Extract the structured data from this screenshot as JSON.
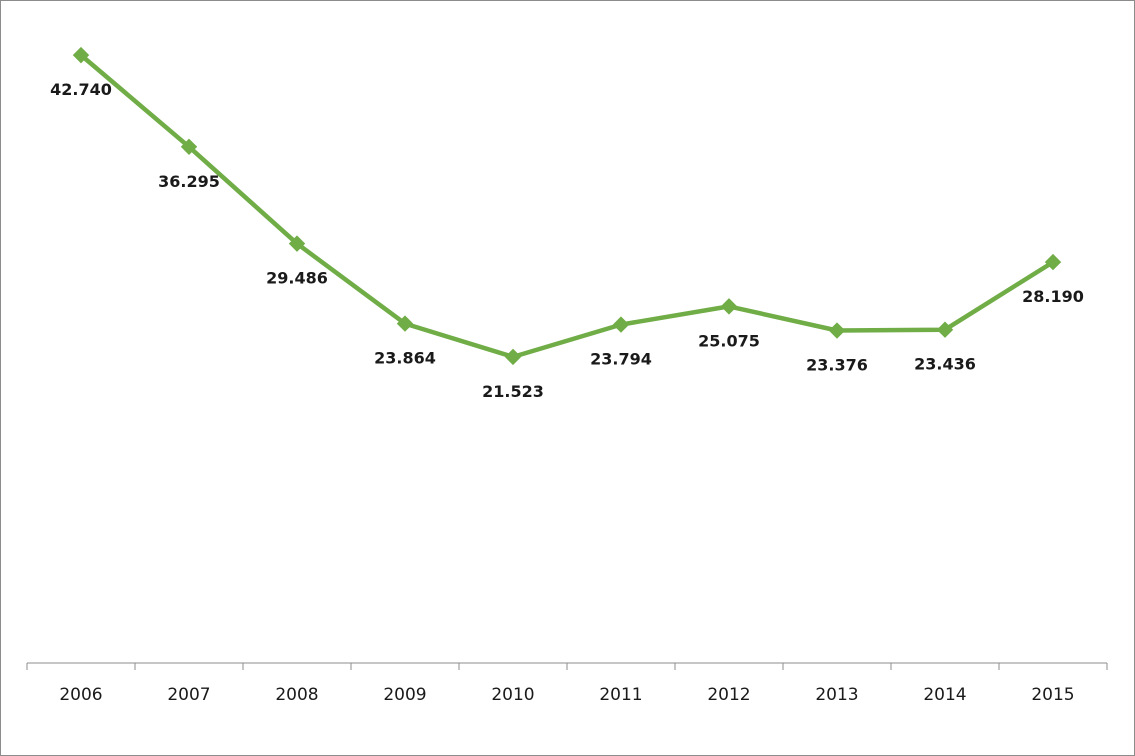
{
  "chart_data": {
    "type": "line",
    "categories": [
      "2006",
      "2007",
      "2008",
      "2009",
      "2010",
      "2011",
      "2012",
      "2013",
      "2014",
      "2015"
    ],
    "series": [
      {
        "values": [
          42.74,
          36.295,
          29.486,
          23.864,
          21.523,
          23.794,
          25.075,
          23.376,
          23.436,
          28.19
        ],
        "labels": [
          "42.740",
          "36.295",
          "29.486",
          "23.864",
          "21.523",
          "23.794",
          "25.075",
          "23.376",
          "23.436",
          "28.190"
        ],
        "color": "#70ad47",
        "marker": "diamond"
      }
    ],
    "title": "",
    "xlabel": "",
    "ylabel": "",
    "ylim": [
      0,
      45
    ],
    "grid": false,
    "legend": "none"
  }
}
